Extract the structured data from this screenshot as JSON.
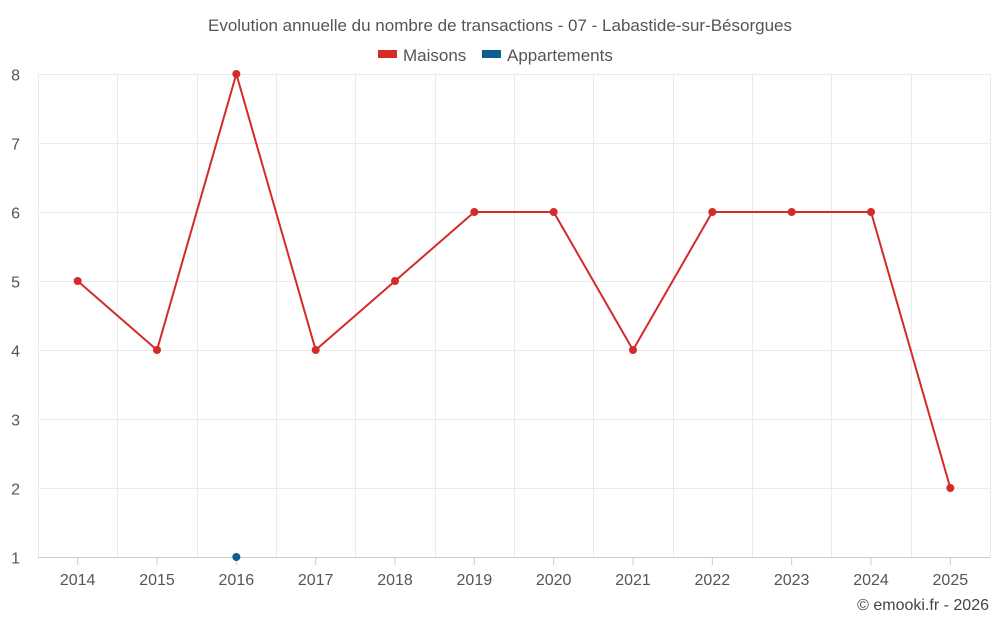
{
  "chart_data": {
    "type": "line",
    "title": "Evolution annuelle du nombre de transactions - 07 - Labastide-sur-Bésorgues",
    "categories": [
      "2014",
      "2015",
      "2016",
      "2017",
      "2018",
      "2019",
      "2020",
      "2021",
      "2022",
      "2023",
      "2024",
      "2025"
    ],
    "series": [
      {
        "name": "Maisons",
        "color": "#d42a2a",
        "values": [
          5,
          4,
          8,
          4,
          5,
          6,
          6,
          4,
          6,
          6,
          6,
          2
        ]
      },
      {
        "name": "Appartements",
        "color": "#0e5f91",
        "values": [
          null,
          null,
          1,
          null,
          null,
          null,
          null,
          null,
          null,
          null,
          null,
          null
        ]
      }
    ],
    "ylim": [
      1,
      8
    ],
    "yticks": [
      1,
      2,
      3,
      4,
      5,
      6,
      7,
      8
    ],
    "xlabel": "",
    "ylabel": "",
    "grid": true,
    "legend": "top-center"
  },
  "credit": "© emooki.fr - 2026"
}
